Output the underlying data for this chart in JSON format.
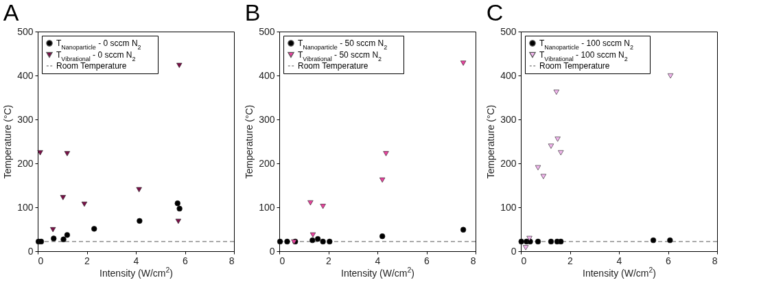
{
  "chart_data": [
    {
      "type": "scatter",
      "title": "A",
      "xlabel": "Intensity (W/cm$^{2}$)",
      "ylabel": "Temperature (°C)",
      "xlim": [
        0,
        8
      ],
      "ylim": [
        0,
        500
      ],
      "xticks": [
        0,
        2,
        4,
        6,
        8
      ],
      "yticks": [
        0,
        100,
        200,
        300,
        400,
        500
      ],
      "grid": false,
      "legend": "top left",
      "series": [
        {
          "name": "T$_{Nanoparticle}$ - 0 sccm N$_{2}$",
          "color": "#000000",
          "marker": "circle",
          "x": [
            0.03,
            0.14,
            0.65,
            1.05,
            1.2,
            2.3,
            4.15,
            5.7,
            5.78
          ],
          "values": [
            22,
            22,
            29,
            27,
            37,
            51,
            69,
            109,
            97
          ]
        },
        {
          "name": "T$_{Vibrational}$ - 0 sccm N$_{2}$",
          "color": "#7a1048",
          "marker": "triangle",
          "x": [
            0.1,
            0.62,
            1.03,
            1.2,
            1.9,
            4.13,
            5.73,
            5.77
          ],
          "values": [
            224,
            49,
            122,
            222,
            107,
            140,
            68,
            423
          ]
        }
      ],
      "ref_lines": [
        {
          "axis": "y",
          "value": 22,
          "label": "Room Temperature",
          "color": "#555555",
          "line_style": "dashed"
        }
      ]
    },
    {
      "type": "scatter",
      "title": "B",
      "xlabel": "Intensity (W/cm$^{2}$)",
      "ylabel": "Temperature (°C)",
      "xlim": [
        0,
        8
      ],
      "ylim": [
        0,
        500
      ],
      "xticks": [
        0,
        2,
        4,
        6,
        8
      ],
      "yticks": [
        0,
        100,
        200,
        300,
        400,
        500
      ],
      "grid": false,
      "legend": "top left",
      "series": [
        {
          "name": "T$_{Nanoparticle}$ - 50 sccm N$_{2}$",
          "color": "#000000",
          "marker": "circle",
          "x": [
            0.03,
            0.32,
            0.65,
            1.35,
            1.57,
            1.78,
            2.05,
            4.2,
            7.5
          ],
          "values": [
            22,
            22,
            22,
            25,
            28,
            22,
            22,
            34,
            49
          ]
        },
        {
          "name": "T$_{Vibrational}$ - 50 sccm N$_{2}$",
          "color": "#e8449e",
          "marker": "triangle",
          "x": [
            0.6,
            1.27,
            1.37,
            1.78,
            4.2,
            4.35,
            7.5
          ],
          "values": [
            21,
            110,
            37,
            102,
            162,
            222,
            428
          ]
        }
      ],
      "ref_lines": [
        {
          "axis": "y",
          "value": 22,
          "label": "Room Temperature",
          "color": "#555555",
          "line_style": "dashed"
        }
      ]
    },
    {
      "type": "scatter",
      "title": "C",
      "xlabel": "Intensity (W/cm$^{2}$)",
      "ylabel": "Temperature (°C)",
      "xlim": [
        0,
        8
      ],
      "ylim": [
        0,
        500
      ],
      "xticks": [
        0,
        2,
        4,
        6,
        8
      ],
      "yticks": [
        0,
        100,
        200,
        300,
        400,
        500
      ],
      "grid": false,
      "legend": "top left",
      "series": [
        {
          "name": "T$_{Nanoparticle}$ - 100 sccm N$_{2}$",
          "color": "#000000",
          "marker": "circle",
          "x": [
            0.02,
            0.23,
            0.38,
            0.7,
            1.23,
            1.48,
            1.63,
            5.4,
            6.08
          ],
          "values": [
            22,
            22,
            22,
            22,
            22,
            22,
            22,
            25,
            25
          ]
        },
        {
          "name": "T$_{Vibrational}$ - 100 sccm N$_{2}$",
          "color": "#f2b6ee",
          "marker": "triangle",
          "x": [
            0.2,
            0.35,
            0.7,
            0.92,
            1.23,
            1.45,
            1.5,
            1.63,
            6.1
          ],
          "values": [
            8,
            29,
            190,
            170,
            239,
            362,
            255,
            224,
            399
          ]
        }
      ],
      "ref_lines": [
        {
          "axis": "y",
          "value": 22,
          "label": "Room Temperature",
          "color": "#555555",
          "line_style": "dashed"
        }
      ]
    }
  ]
}
